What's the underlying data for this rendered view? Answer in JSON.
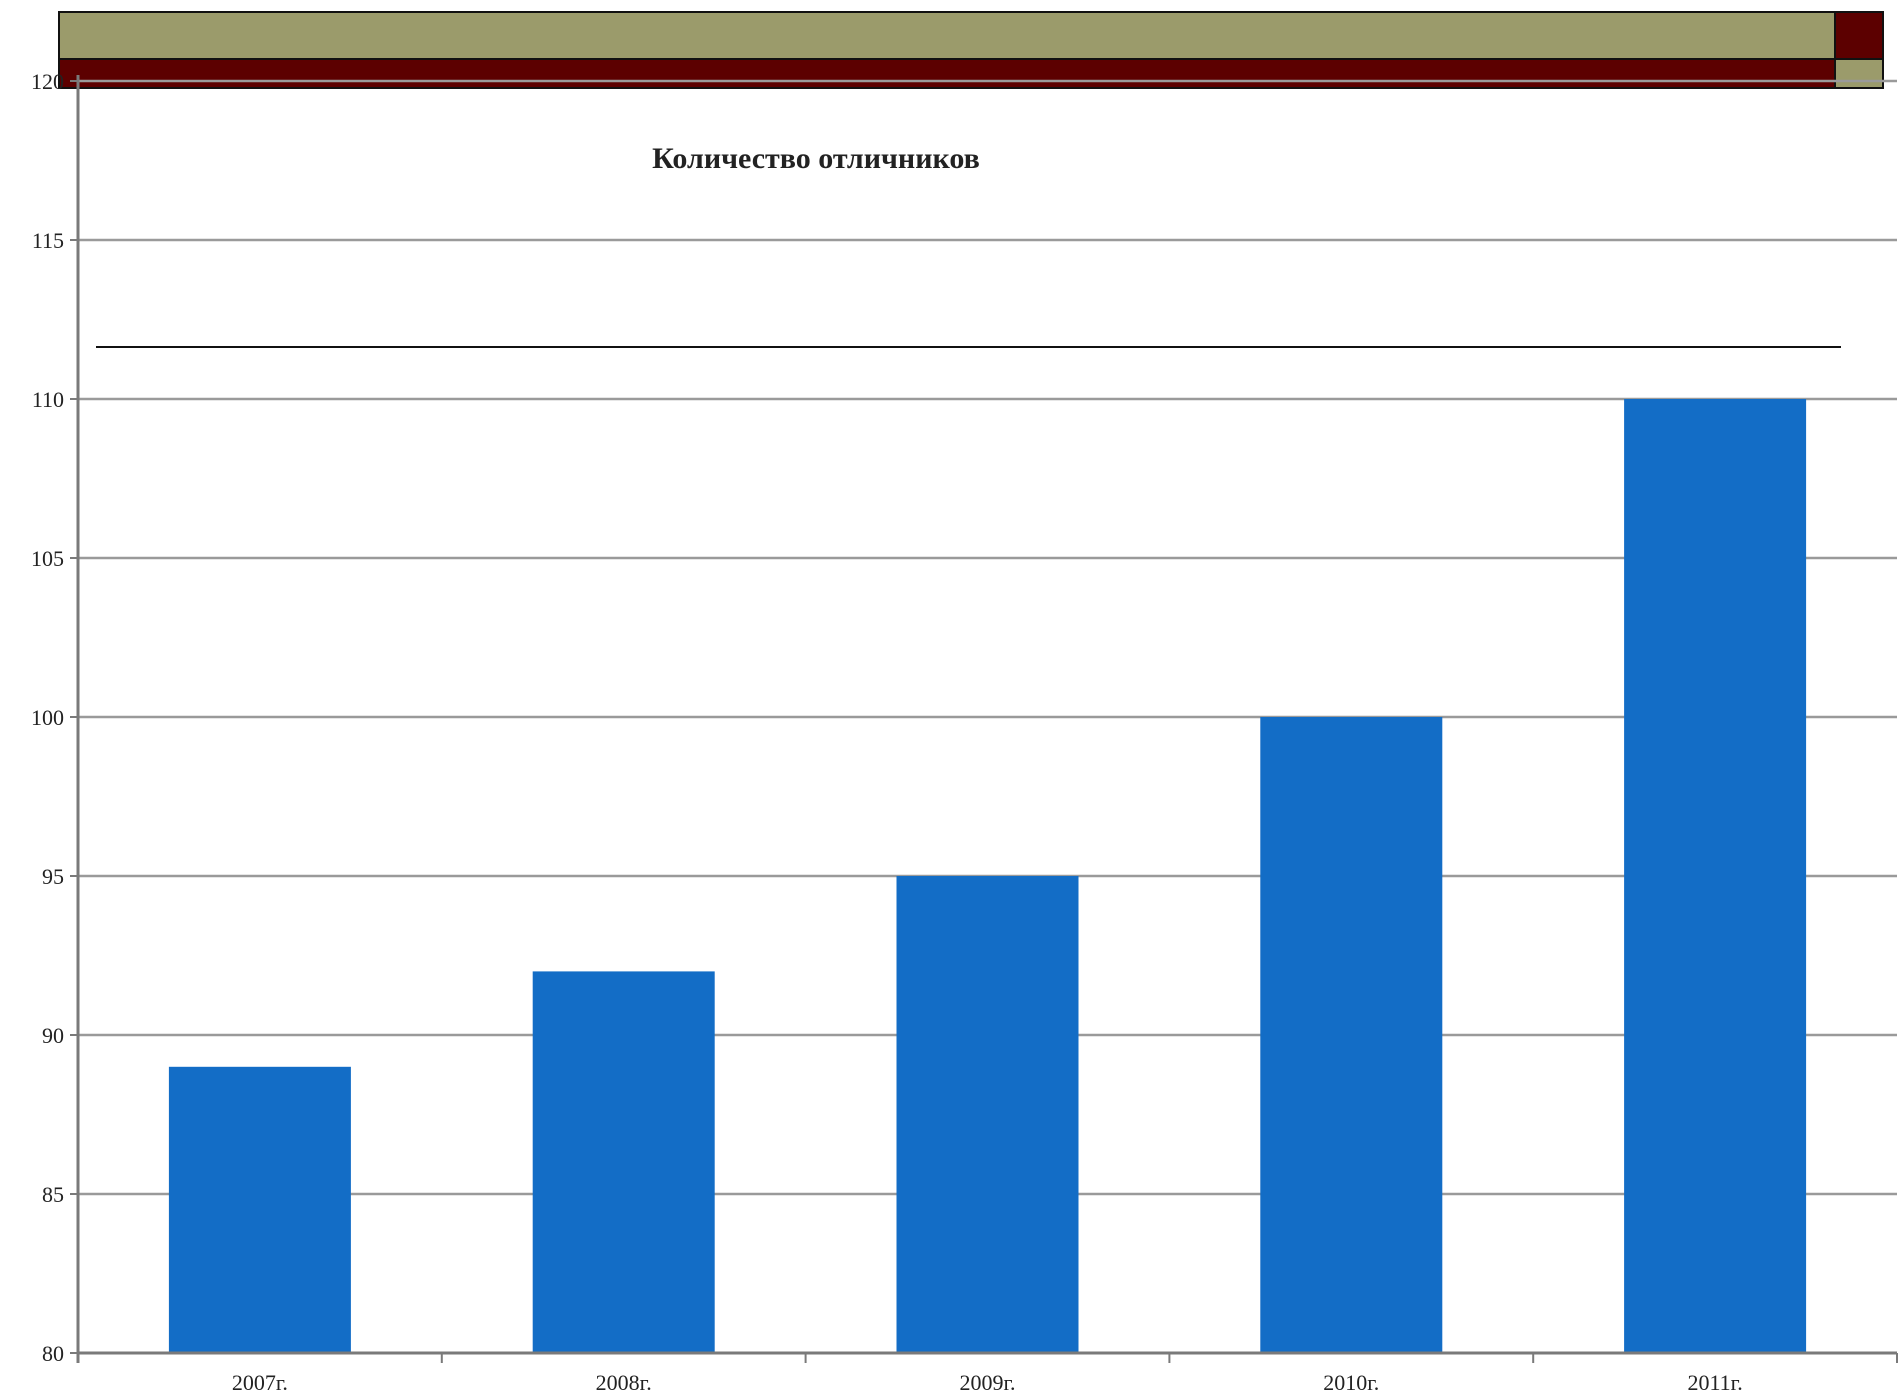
{
  "colors": {
    "olive_band": "#9b9b6b",
    "maroon_band": "#5c0000",
    "bar_fill": "#136dc6",
    "gridline": "#9a9a9a",
    "axis": "#7a7a7a"
  },
  "chart_data": {
    "type": "bar",
    "title": "Количество отличников",
    "categories": [
      "2007г.",
      "2008г.",
      "2009г.",
      "2010г.",
      "2011г."
    ],
    "series": [
      {
        "values": [
          89,
          92,
          95,
          100,
          110
        ]
      }
    ],
    "xlabel": "",
    "ylabel": "",
    "ylim": [
      80,
      120
    ],
    "yticks": [
      80,
      85,
      90,
      95,
      100,
      105,
      110,
      115,
      120
    ],
    "grid": true,
    "legend": "none"
  }
}
